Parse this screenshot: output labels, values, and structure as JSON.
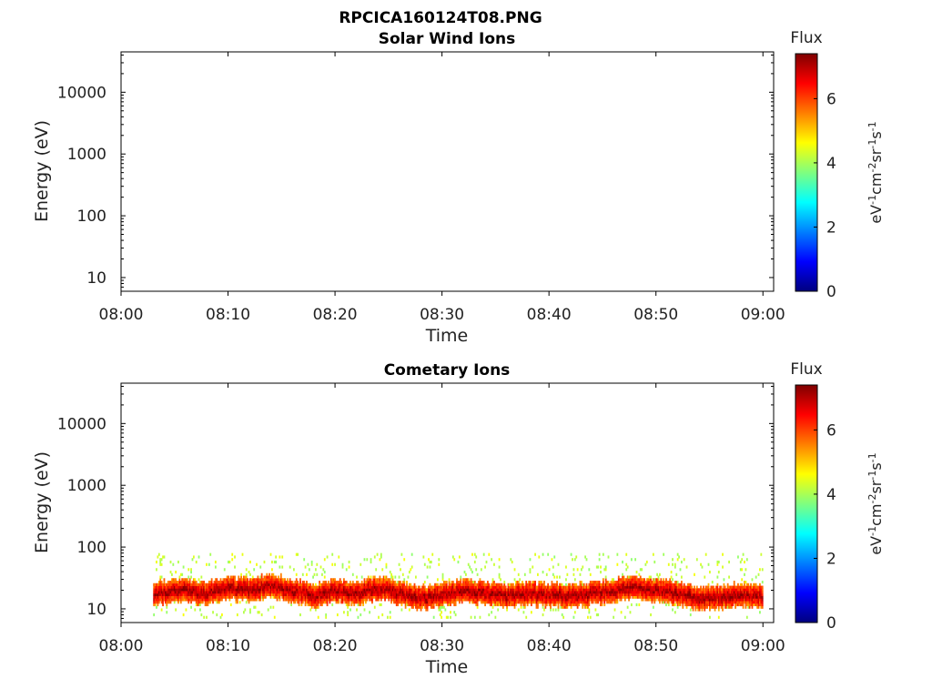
{
  "figure": {
    "title": "RPCICA160124T08.PNG",
    "colormap": [
      "#00007f",
      "#0000ff",
      "#007fff",
      "#00ffff",
      "#7fff7f",
      "#ffff00",
      "#ff7f00",
      "#ff0000",
      "#7f0000"
    ]
  },
  "chart_data": [
    {
      "type": "heatmap",
      "title": "Solar Wind Ions",
      "xlabel": "Time",
      "ylabel": "Energy (eV)",
      "x_ticks": [
        "08:00",
        "08:10",
        "08:20",
        "08:30",
        "08:40",
        "08:50",
        "09:00"
      ],
      "x_range": [
        "08:00",
        "09:01"
      ],
      "y_scale": "log",
      "y_ticks": [
        10,
        100,
        1000,
        10000
      ],
      "y_range": [
        6,
        45000
      ],
      "colorbar": {
        "title": "Flux",
        "label": "eV-1cm-2sr-1s-1",
        "ticks": [
          0,
          2,
          4,
          6
        ],
        "range": [
          0,
          7.4
        ]
      },
      "data": []
    },
    {
      "type": "heatmap",
      "title": "Cometary Ions",
      "xlabel": "Time",
      "ylabel": "Energy (eV)",
      "x_ticks": [
        "08:00",
        "08:10",
        "08:20",
        "08:30",
        "08:40",
        "08:50",
        "09:00"
      ],
      "x_range": [
        "08:00",
        "09:01"
      ],
      "y_scale": "log",
      "y_ticks": [
        10,
        100,
        1000,
        10000
      ],
      "y_range": [
        6,
        45000
      ],
      "colorbar": {
        "title": "Flux",
        "label": "eV-1cm-2sr-1s-1",
        "ticks": [
          0,
          2,
          4,
          6
        ],
        "range": [
          0,
          7.4
        ]
      },
      "data_extent": {
        "time_start": "08:03",
        "time_end": "09:00",
        "energy_min_eV": 7,
        "energy_max_eV": 80
      },
      "band_center_eV": [
        {
          "t": "08:03",
          "e": 18
        },
        {
          "t": "08:06",
          "e": 20
        },
        {
          "t": "08:08",
          "e": 18
        },
        {
          "t": "08:10",
          "e": 22
        },
        {
          "t": "08:12",
          "e": 20
        },
        {
          "t": "08:14",
          "e": 24
        },
        {
          "t": "08:16",
          "e": 20
        },
        {
          "t": "08:18",
          "e": 16
        },
        {
          "t": "08:20",
          "e": 20
        },
        {
          "t": "08:22",
          "e": 18
        },
        {
          "t": "08:24",
          "e": 22
        },
        {
          "t": "08:26",
          "e": 18
        },
        {
          "t": "08:28",
          "e": 15
        },
        {
          "t": "08:30",
          "e": 17
        },
        {
          "t": "08:32",
          "e": 19
        },
        {
          "t": "08:34",
          "e": 18
        },
        {
          "t": "08:36",
          "e": 16
        },
        {
          "t": "08:38",
          "e": 18
        },
        {
          "t": "08:40",
          "e": 17
        },
        {
          "t": "08:42",
          "e": 16
        },
        {
          "t": "08:44",
          "e": 18
        },
        {
          "t": "08:46",
          "e": 20
        },
        {
          "t": "08:48",
          "e": 22
        },
        {
          "t": "08:50",
          "e": 20
        },
        {
          "t": "08:52",
          "e": 18
        },
        {
          "t": "08:54",
          "e": 15
        },
        {
          "t": "08:56",
          "e": 16
        },
        {
          "t": "08:58",
          "e": 17
        },
        {
          "t": "09:00",
          "e": 16
        }
      ],
      "peak_flux": 7.2
    }
  ]
}
